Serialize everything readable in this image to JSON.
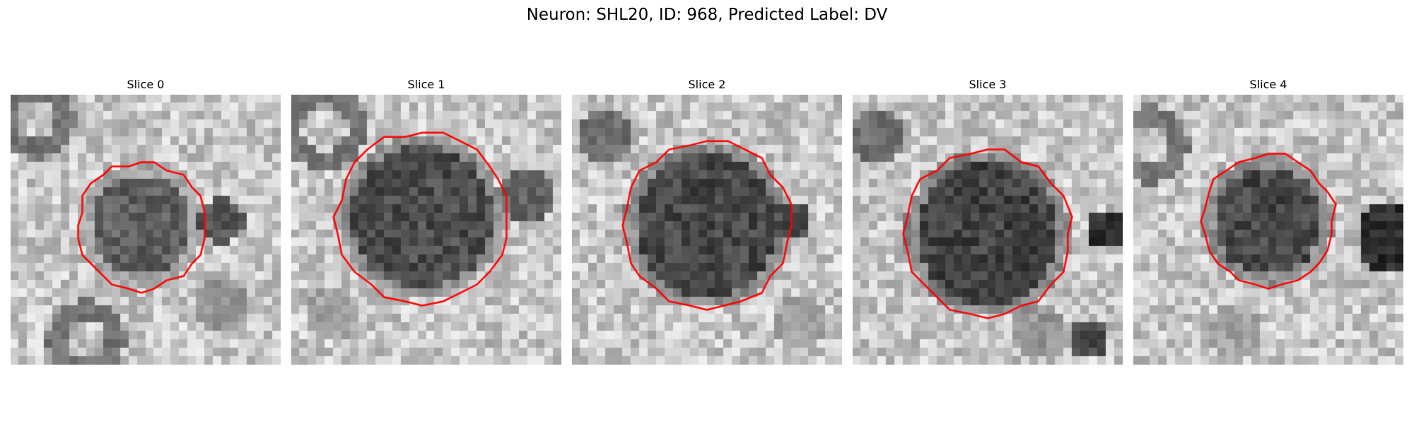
{
  "figure": {
    "title": "Neuron: SHL20, ID: 968, Predicted Label: DV"
  },
  "panels": [
    {
      "title": "Slice 0"
    },
    {
      "title": "Slice 1"
    },
    {
      "title": "Slice 2"
    },
    {
      "title": "Slice 3"
    },
    {
      "title": "Slice 4"
    }
  ],
  "colors": {
    "outline": "#ff0000",
    "background": "#ffffff"
  }
}
